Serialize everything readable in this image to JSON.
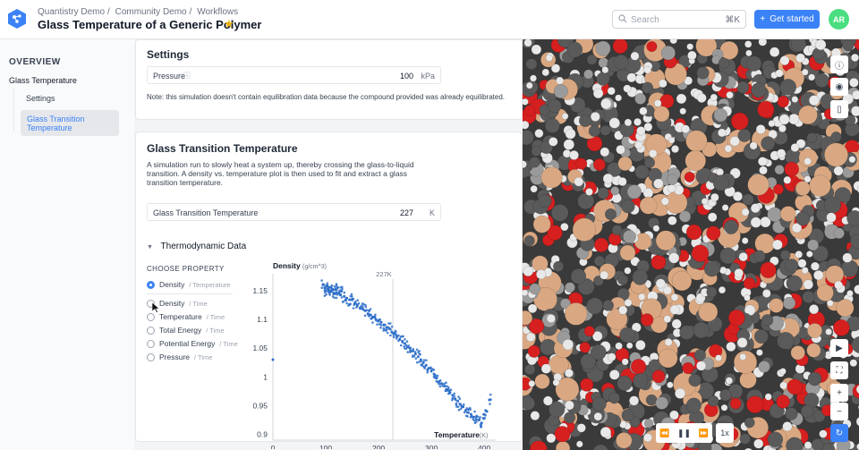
{
  "breadcrumb": [
    "Quantistry Demo",
    "Community Demo",
    "Workflows"
  ],
  "page_title": "Glass Temperature of a Generic Polymer",
  "search": {
    "placeholder": "Search",
    "shortcut": "⌘K"
  },
  "get_started_label": "Get started",
  "avatar_initials": "AR",
  "sidebar": {
    "overview": "OVERVIEW",
    "group": "Glass Temperature",
    "items": [
      {
        "label": "Settings"
      },
      {
        "label": "Glass Transition Temperature",
        "active": true
      }
    ]
  },
  "settings": {
    "title": "Settings",
    "pressure": {
      "label": "Pressure",
      "value": "100",
      "unit": "kPa"
    },
    "note": "Note: this simulation doesn't contain equilibration data because the compound provided was already equilibrated."
  },
  "gtt": {
    "title": "Glass Transition Temperature",
    "description": "A simulation run to slowly heat a system up, thereby crossing the glass-to-liquid transition. A density vs. temperature plot is then used to fit and extract a glass transition temperature.",
    "field": {
      "label": "Glass Transition Temperature",
      "value": "227",
      "unit": "K"
    },
    "thermo_title": "Thermodynamic Data",
    "choose_property": "CHOOSE PROPERTY",
    "properties": [
      {
        "name": "Density",
        "sub": "/ Temperature",
        "selected": true
      },
      {
        "name": "Density",
        "sub": "/ Time",
        "selected": false
      },
      {
        "name": "Temperature",
        "sub": "/ Time",
        "selected": false
      },
      {
        "name": "Total Energy",
        "sub": "/ Time",
        "selected": false
      },
      {
        "name": "Potential Energy",
        "sub": "/ Time",
        "selected": false
      },
      {
        "name": "Pressure",
        "sub": "/ Time",
        "selected": false
      }
    ]
  },
  "chart_data": {
    "type": "scatter",
    "ylabel": "Density",
    "ylabel_unit": "(g/cm^3)",
    "xlabel": "Temperature",
    "xlabel_unit": "(K)",
    "xlim": [
      0,
      415
    ],
    "ylim": [
      0.89,
      1.17
    ],
    "x_ticks": [
      0,
      100,
      200,
      300,
      400
    ],
    "y_ticks": [
      0.9,
      0.95,
      1,
      1.05,
      1.1,
      1.15
    ],
    "annotation": {
      "label": "227K",
      "x": 227
    },
    "series": [
      {
        "color": "#2e6fc9",
        "x": [
          0,
          95,
          98,
          100,
          102,
          105,
          108,
          110,
          112,
          115,
          118,
          120,
          125,
          128,
          130,
          135,
          140,
          145,
          150,
          155,
          160,
          165,
          170,
          175,
          180,
          185,
          190,
          195,
          200,
          205,
          210,
          215,
          220,
          225,
          230,
          235,
          240,
          245,
          250,
          255,
          260,
          265,
          270,
          275,
          280,
          285,
          290,
          295,
          300,
          305,
          310,
          315,
          320,
          325,
          330,
          335,
          340,
          345,
          350,
          355,
          360,
          365,
          370,
          375,
          380,
          385,
          390,
          395,
          400,
          405,
          410
        ],
        "y": [
          1.03,
          1.16,
          1.155,
          1.15,
          1.158,
          1.153,
          1.148,
          1.156,
          1.15,
          1.145,
          1.152,
          1.147,
          1.146,
          1.143,
          1.149,
          1.14,
          1.137,
          1.134,
          1.135,
          1.128,
          1.125,
          1.12,
          1.118,
          1.115,
          1.11,
          1.108,
          1.104,
          1.1,
          1.098,
          1.095,
          1.09,
          1.086,
          1.084,
          1.078,
          1.076,
          1.07,
          1.065,
          1.062,
          1.058,
          1.052,
          1.05,
          1.045,
          1.04,
          1.035,
          1.03,
          1.025,
          1.02,
          1.015,
          1.01,
          1.005,
          0.998,
          0.992,
          0.988,
          0.984,
          0.978,
          0.972,
          0.968,
          0.962,
          0.958,
          0.952,
          0.948,
          0.942,
          0.938,
          0.935,
          0.93,
          0.926,
          0.925,
          0.92,
          0.935,
          0.94,
          0.96
        ]
      }
    ]
  },
  "viewer": {
    "side_controls": [
      "info-icon",
      "camera-icon",
      "trash-icon"
    ],
    "bottom_controls": [
      "video-icon",
      "fullscreen-icon",
      "zoom-in-icon",
      "zoom-out-icon",
      "reset-icon"
    ],
    "playback_speed": "1x"
  }
}
